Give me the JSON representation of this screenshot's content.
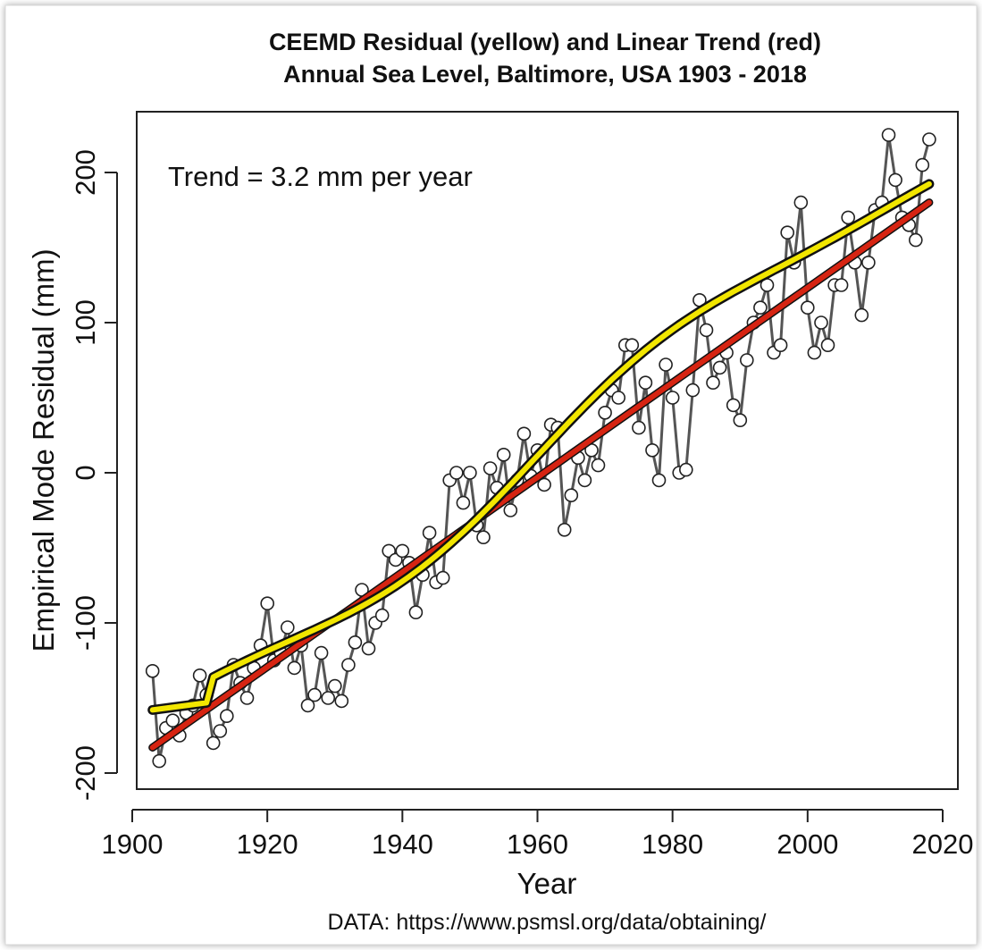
{
  "chart_data": {
    "type": "line",
    "title": "CEEMD Residual (yellow) and Linear Trend (red)",
    "subtitle": "Annual Sea Level, Baltimore, USA 1903 - 2018",
    "xlabel": "Year",
    "ylabel": "Empirical Mode Residual (mm)",
    "xlim": [
      1900,
      2020
    ],
    "ylim": [
      -200,
      200
    ],
    "x_ticks": [
      1900,
      1920,
      1940,
      1960,
      1980,
      2000,
      2020
    ],
    "y_ticks": [
      -200,
      -100,
      0,
      100,
      200
    ],
    "x_tick_labels": [
      "1900",
      "1920",
      "1940",
      "1960",
      "1980",
      "2000",
      "2020"
    ],
    "y_tick_labels": [
      "-200",
      "-100",
      "0",
      "100",
      "200"
    ],
    "annotation": "Trend = 3.2 mm per year",
    "source_note": "DATA: https://www.psmsl.org/data/obtaining/",
    "grid": false,
    "legend": "none",
    "colors": {
      "data": "#555555",
      "trend": "#d62412",
      "residual": "#f2e600",
      "residual_outline": "#111111"
    },
    "x": [
      1903,
      1904,
      1905,
      1906,
      1907,
      1908,
      1909,
      1910,
      1911,
      1912,
      1913,
      1914,
      1915,
      1916,
      1917,
      1918,
      1919,
      1920,
      1921,
      1922,
      1923,
      1924,
      1925,
      1926,
      1927,
      1928,
      1929,
      1930,
      1931,
      1932,
      1933,
      1934,
      1935,
      1936,
      1937,
      1938,
      1939,
      1940,
      1941,
      1942,
      1943,
      1944,
      1945,
      1946,
      1947,
      1948,
      1949,
      1950,
      1951,
      1952,
      1953,
      1954,
      1955,
      1956,
      1957,
      1958,
      1959,
      1960,
      1961,
      1962,
      1963,
      1964,
      1965,
      1966,
      1967,
      1968,
      1969,
      1970,
      1971,
      1972,
      1973,
      1974,
      1975,
      1976,
      1977,
      1978,
      1979,
      1980,
      1981,
      1982,
      1983,
      1984,
      1985,
      1986,
      1987,
      1988,
      1989,
      1990,
      1991,
      1992,
      1993,
      1994,
      1995,
      1996,
      1997,
      1998,
      1999,
      2000,
      2001,
      2002,
      2003,
      2004,
      2005,
      2006,
      2007,
      2008,
      2009,
      2010,
      2011,
      2012,
      2013,
      2014,
      2015,
      2016,
      2017,
      2018
    ],
    "series": [
      {
        "role": "data",
        "values": [
          -132,
          -192,
          -170,
          -165,
          -175,
          -160,
          -155,
          -135,
          -148,
          -180,
          -172,
          -162,
          -128,
          -140,
          -150,
          -130,
          -115,
          -87,
          -125,
          -120,
          -103,
          -130,
          -115,
          -155,
          -148,
          -120,
          -150,
          -142,
          -152,
          -128,
          -113,
          -78,
          -117,
          -100,
          -95,
          -52,
          -58,
          -52,
          -60,
          -93,
          -68,
          -40,
          -73,
          -70,
          -5,
          0,
          -20,
          0,
          -35,
          -43,
          3,
          -10,
          12,
          -25,
          -5,
          26,
          -2,
          15,
          -8,
          32,
          30,
          -38,
          -15,
          10,
          -5,
          15,
          5,
          40,
          55,
          50,
          85,
          85,
          30,
          60,
          15,
          -5,
          72,
          50,
          0,
          2,
          55,
          115,
          95,
          60,
          70,
          80,
          45,
          35,
          75,
          100,
          110,
          125,
          80,
          85,
          160,
          140,
          180,
          110,
          80,
          100,
          85,
          125,
          125,
          170,
          140,
          105,
          140,
          175,
          180,
          225,
          195,
          170,
          165,
          155,
          205,
          222
        ]
      },
      {
        "role": "residual",
        "values": [
          -158,
          -158,
          -157,
          -157,
          -156,
          -155,
          -154,
          -153,
          -152,
          -151,
          -150,
          -148,
          -146,
          -144,
          -142,
          -140,
          -138,
          -136,
          -134,
          -132,
          -130,
          -127,
          -124,
          -121,
          -118,
          -114,
          -110,
          -105,
          -100,
          -94,
          -88,
          -82,
          -76,
          -70,
          -63,
          -56,
          -49,
          -42,
          -35,
          -28,
          -21,
          -14,
          -7,
          -1,
          5,
          10,
          14,
          17,
          20,
          22,
          24,
          27,
          29,
          31,
          33,
          35,
          37,
          40,
          42,
          45,
          48,
          51,
          54,
          57,
          60,
          63,
          66,
          69,
          72,
          76,
          79,
          82,
          86,
          89,
          93,
          97,
          100,
          104,
          108,
          112,
          116,
          121,
          125,
          130,
          134,
          139,
          144,
          148,
          153,
          158,
          162,
          167,
          171,
          175,
          179,
          183,
          186,
          189,
          192,
          195,
          198,
          201,
          203,
          205,
          207,
          209,
          211,
          213,
          214,
          215,
          216,
          217,
          187,
          188,
          189,
          189
        ],
        "note": "smooth CEEMD residual"
      },
      {
        "role": "trend",
        "values": [
          -183,
          180
        ],
        "x": [
          1903,
          2018
        ],
        "note": "linear trend 3.2 mm per year"
      }
    ]
  }
}
